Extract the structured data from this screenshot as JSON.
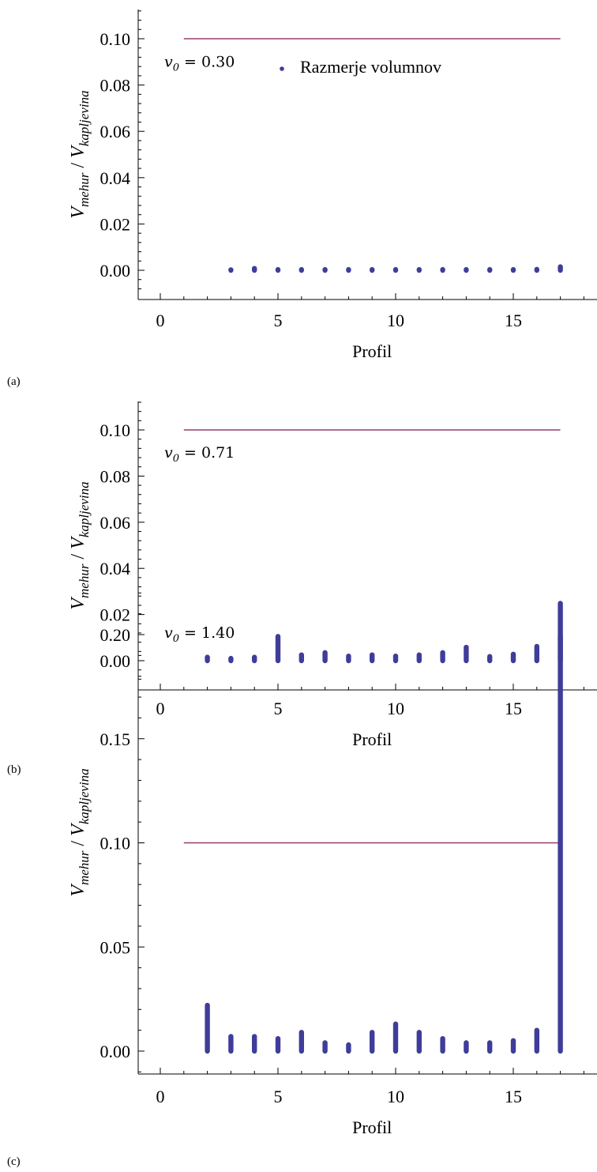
{
  "colors": {
    "points": "#3f3d99",
    "line": "#9a3b6d",
    "axis": "#000000"
  },
  "chart_data": [
    {
      "type": "scatter",
      "panel": "(a)",
      "xlabel": "Profil",
      "ylabel": {
        "base1": "V",
        "sub1": "mehur",
        "sep": " / ",
        "base2": "V",
        "sub2": "kapljevina"
      },
      "xlim": [
        -1,
        19
      ],
      "ylim": [
        -0.011,
        0.112
      ],
      "xticks": [
        0,
        5,
        10,
        15
      ],
      "yticks": [
        0.0,
        0.02,
        0.04,
        0.06,
        0.08,
        0.1
      ],
      "ytick_labels": [
        "0.00",
        "0.02",
        "0.04",
        "0.06",
        "0.08",
        "0.10"
      ],
      "annotation": {
        "var": "v",
        "sub": "0",
        "value": "= 0.30"
      },
      "legend": {
        "label": "Razmerje volumnov",
        "placement": "top-center"
      },
      "reference_line": {
        "y": 0.1,
        "x_from": 1,
        "x_to": 17
      },
      "series": [
        {
          "name": "Razmerje volumnov",
          "profiles": [
            3,
            4,
            5,
            6,
            7,
            8,
            9,
            10,
            11,
            12,
            13,
            14,
            15,
            16,
            17
          ],
          "max_values": [
            0.0002,
            0.0008,
            0.0003,
            0.0003,
            0.0003,
            0.0003,
            0.0003,
            0.0003,
            0.0003,
            0.0003,
            0.0003,
            0.0003,
            0.0003,
            0.0004,
            0.0015
          ]
        }
      ]
    },
    {
      "type": "scatter",
      "panel": "(b)",
      "xlabel": "Profil",
      "ylabel": {
        "base1": "V",
        "sub1": "mehur",
        "sep": " / ",
        "base2": "V",
        "sub2": "kapljevina"
      },
      "xlim": [
        -1,
        19
      ],
      "ylim": [
        -0.011,
        0.112
      ],
      "xticks": [
        0,
        5,
        10,
        15
      ],
      "yticks": [
        0.0,
        0.02,
        0.04,
        0.06,
        0.08,
        0.1
      ],
      "ytick_labels": [
        "0.00",
        "0.02",
        "0.04",
        "0.06",
        "0.08",
        "0.10"
      ],
      "annotation": {
        "var": "v",
        "sub": "0",
        "value": "= 0.71"
      },
      "reference_line": {
        "y": 0.1,
        "x_from": 1,
        "x_to": 17
      },
      "series": [
        {
          "name": "",
          "profiles": [
            2,
            3,
            4,
            5,
            6,
            7,
            8,
            9,
            10,
            11,
            12,
            13,
            14,
            15,
            16,
            17
          ],
          "max_values": [
            0.0015,
            0.001,
            0.0015,
            0.0105,
            0.0025,
            0.0035,
            0.002,
            0.0025,
            0.002,
            0.0025,
            0.0035,
            0.0058,
            0.0018,
            0.0028,
            0.0062,
            0.011
          ]
        }
      ]
    },
    {
      "type": "scatter",
      "panel": "(c)",
      "xlabel": "Profil",
      "ylabel": {
        "base1": "V",
        "sub1": "mehur",
        "sep": " / ",
        "base2": "V",
        "sub2": "kapljevina"
      },
      "xlim": [
        -1,
        19
      ],
      "ylim": [
        -0.022,
        0.24
      ],
      "xticks": [
        0,
        5,
        10,
        15
      ],
      "yticks": [
        0.0,
        0.05,
        0.1,
        0.15,
        0.2
      ],
      "ytick_labels": [
        "0.00",
        "0.05",
        "0.10",
        "0.15",
        "0.20"
      ],
      "annotation": {
        "var": "v",
        "sub": "0",
        "value": "= 1.40"
      },
      "reference_line": {
        "y": 0.1,
        "x_from": 1,
        "x_to": 17
      },
      "series": [
        {
          "name": "",
          "profiles": [
            2,
            3,
            4,
            5,
            6,
            7,
            8,
            9,
            10,
            11,
            12,
            13,
            14,
            15,
            16,
            17
          ],
          "max_values": [
            0.022,
            0.007,
            0.007,
            0.006,
            0.009,
            0.004,
            0.003,
            0.009,
            0.013,
            0.009,
            0.006,
            0.004,
            0.004,
            0.005,
            0.01,
            0.215
          ]
        }
      ]
    }
  ]
}
